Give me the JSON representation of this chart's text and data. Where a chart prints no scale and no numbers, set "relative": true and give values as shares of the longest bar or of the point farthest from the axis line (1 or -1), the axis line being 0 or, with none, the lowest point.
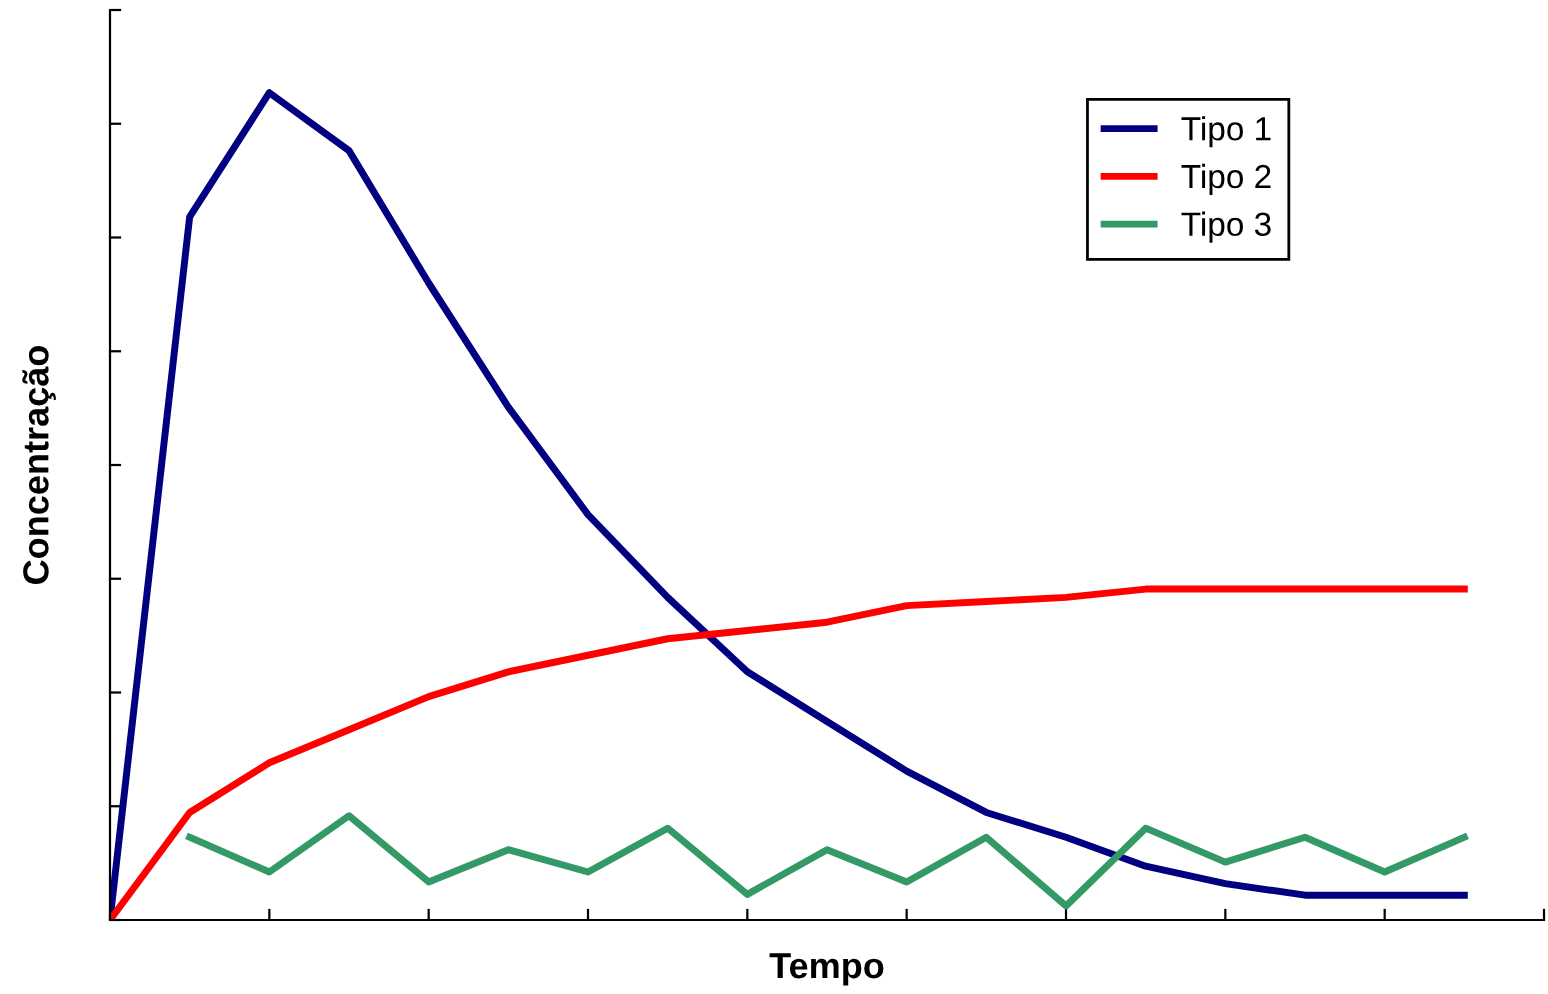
{
  "chart_data": {
    "type": "line",
    "relative": true,
    "xlabel": "Tempo",
    "ylabel": "Concentração",
    "categories": [
      null,
      null,
      null,
      null,
      null,
      null,
      null,
      null,
      null,
      null,
      null,
      null,
      null,
      null,
      null,
      null,
      null,
      null
    ],
    "series": [
      {
        "name": "Tipo 1",
        "color": "#000080",
        "values": [
          0,
          0.85,
          1,
          0.93,
          0.77,
          0.62,
          0.49,
          0.39,
          0.3,
          0.24,
          0.18,
          0.13,
          0.1,
          0.065,
          0.044,
          0.03,
          0.03,
          0.03
        ]
      },
      {
        "name": "Tipo 2",
        "color": "#ff0000",
        "values": [
          0,
          0.13,
          0.19,
          0.23,
          0.27,
          0.3,
          0.32,
          0.34,
          0.35,
          0.36,
          0.38,
          0.385,
          0.39,
          0.4,
          0.4,
          0.4,
          0.4,
          0.4
        ]
      },
      {
        "name": "Tipo 3",
        "color": "#339966",
        "values": [
          null,
          0.1,
          0.058,
          0.126,
          0.046,
          0.085,
          0.058,
          0.111,
          0.031,
          0.085,
          0.046,
          0.1,
          0.017,
          0.111,
          0.07,
          0.1,
          0.058,
          0.1
        ]
      }
    ],
    "legend": "top right",
    "grid": false
  }
}
